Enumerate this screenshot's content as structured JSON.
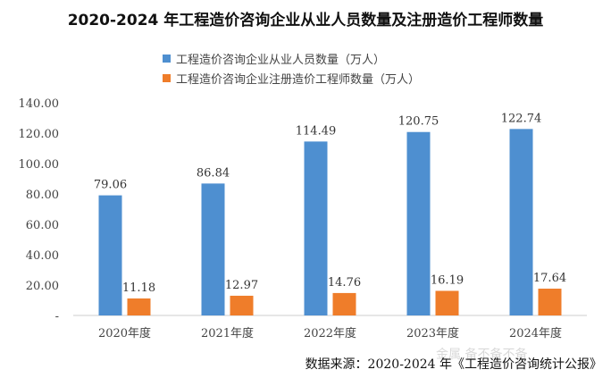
{
  "chart_data": {
    "type": "bar",
    "title": "2020-2024 年工程造价咨询企业从业人员数量及注册造价工程师数量",
    "categories": [
      "2020年度",
      "2021年度",
      "2022年度",
      "2023年度",
      "2024年度"
    ],
    "series": [
      {
        "name": "工程造价咨询企业从业人员数量（万人）",
        "color": "#4e8fd0",
        "values": [
          79.06,
          86.84,
          114.49,
          120.75,
          122.74
        ],
        "labels": [
          "79.06",
          "86.84",
          "114.49",
          "120.75",
          "122.74"
        ]
      },
      {
        "name": "工程造价咨询企业注册造价工程师数量（万人）",
        "color": "#ef7d2a",
        "values": [
          11.18,
          12.97,
          14.76,
          16.19,
          17.64
        ],
        "labels": [
          "11.18",
          "12.97",
          "14.76",
          "16.19",
          "17.64"
        ]
      }
    ],
    "yticks": [
      "-",
      "20.00",
      "40.00",
      "60.00",
      "80.00",
      "100.00",
      "120.00",
      "140.00"
    ],
    "ylim": [
      0,
      140
    ],
    "grid": false,
    "legend": "top-center"
  },
  "source": "数据来源：2020-2024 年《工程造价咨询统计公报》",
  "watermark": "金属  备不备不备"
}
